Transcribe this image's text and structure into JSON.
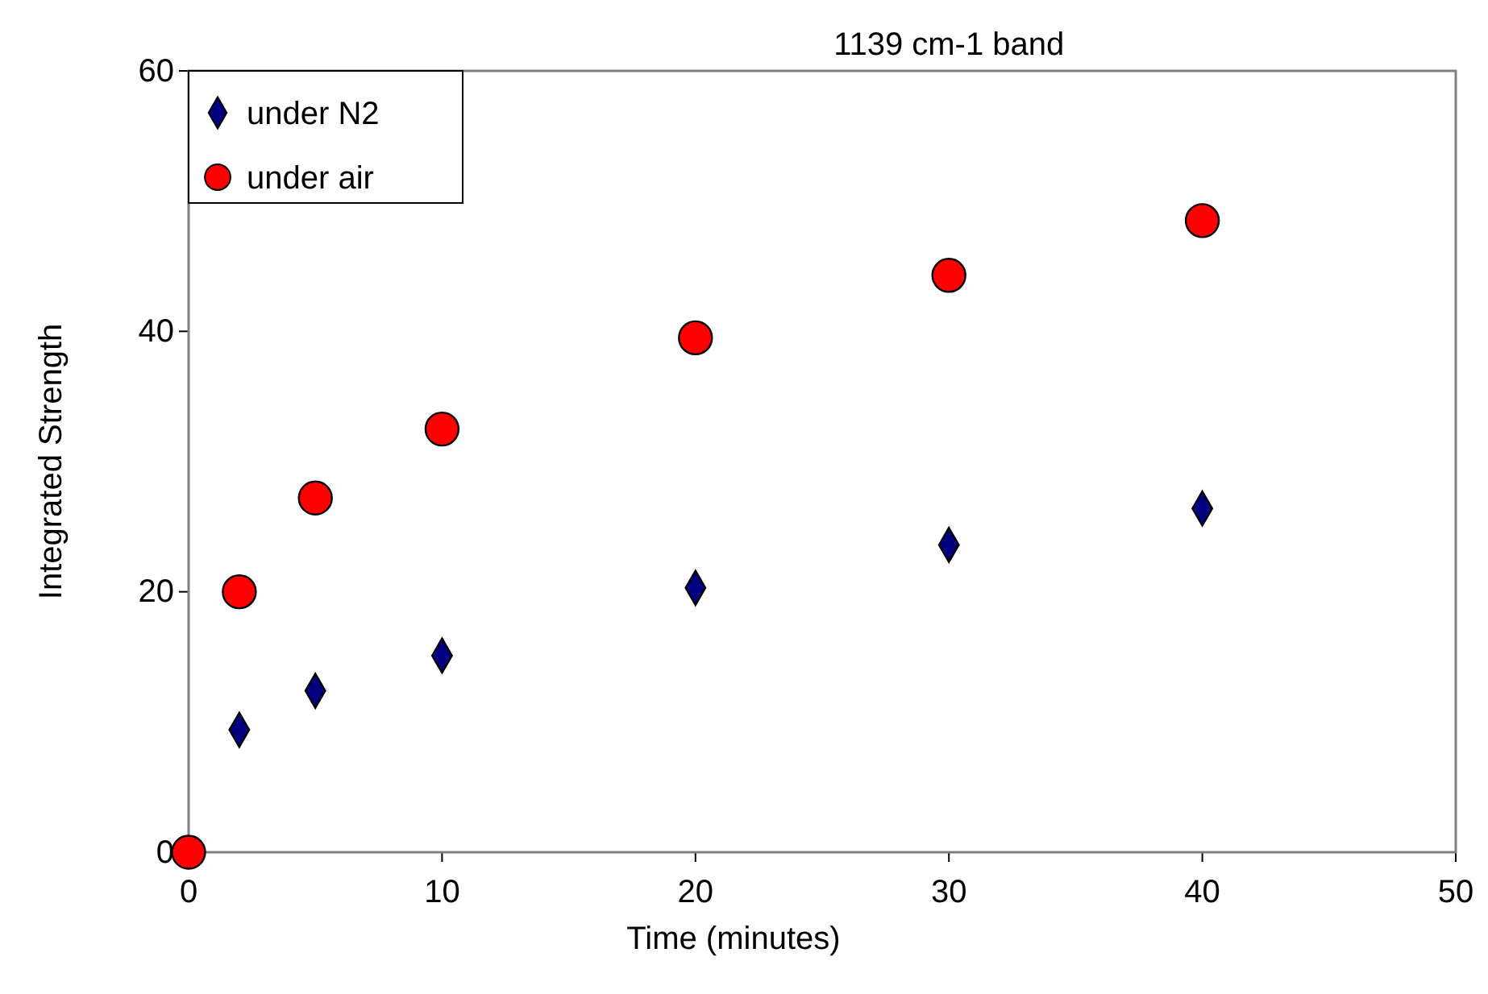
{
  "chart_data": {
    "type": "scatter",
    "title": "1139 cm-1 band",
    "xlabel": "Time (minutes)",
    "ylabel": "Integrated Strength",
    "xlim": [
      0,
      50
    ],
    "xticks": [
      0,
      10,
      20,
      30,
      40,
      50
    ],
    "ylim": [
      0,
      60
    ],
    "yticks": [
      0,
      20,
      40,
      60
    ],
    "grid": false,
    "legend": "top left",
    "series": [
      {
        "name": "under N2",
        "color": "#000080",
        "marker": "diamond",
        "x": [
          2,
          5,
          10,
          20,
          30,
          40
        ],
        "values": [
          9.4,
          12.4,
          15.1,
          20.3,
          23.6,
          26.4
        ]
      },
      {
        "name": "under air",
        "color": "#ff0000",
        "marker": "circle",
        "x": [
          0,
          2,
          5,
          10,
          20,
          30,
          40
        ],
        "values": [
          0,
          20.0,
          27.2,
          32.5,
          39.5,
          44.3,
          48.5
        ]
      }
    ]
  }
}
